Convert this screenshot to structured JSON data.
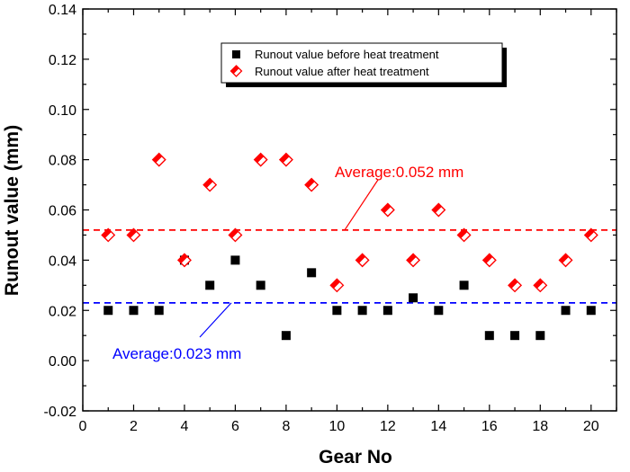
{
  "chart_data": {
    "type": "scatter",
    "xlabel": "Gear No",
    "ylabel": "Runout value (mm)",
    "xlim": [
      0,
      21
    ],
    "ylim": [
      -0.02,
      0.14
    ],
    "xticks": [
      "0",
      "2",
      "4",
      "6",
      "8",
      "10",
      "12",
      "14",
      "16",
      "18",
      "20"
    ],
    "yticks": [
      "-0.02",
      "0.00",
      "0.02",
      "0.04",
      "0.06",
      "0.08",
      "0.10",
      "0.12",
      "0.14"
    ],
    "x": [
      1,
      2,
      3,
      4,
      5,
      6,
      7,
      8,
      9,
      10,
      11,
      12,
      13,
      14,
      15,
      16,
      17,
      18,
      19,
      20
    ],
    "series": [
      {
        "name": "Runout value before heat treatment",
        "marker": "square",
        "color": "#000000",
        "values": [
          0.02,
          0.02,
          0.02,
          0.04,
          0.03,
          0.04,
          0.03,
          0.01,
          0.035,
          0.02,
          0.02,
          0.02,
          0.025,
          0.02,
          0.03,
          0.01,
          0.01,
          0.01,
          0.02,
          0.02
        ]
      },
      {
        "name": "Runout value after heat treatment",
        "marker": "diamond",
        "color": "#ff0000",
        "values": [
          0.05,
          0.05,
          0.08,
          0.04,
          0.07,
          0.05,
          0.08,
          0.08,
          0.07,
          0.03,
          0.04,
          0.06,
          0.04,
          0.06,
          0.05,
          0.04,
          0.03,
          0.03,
          0.04,
          0.05
        ]
      }
    ],
    "reference_lines": [
      {
        "value": 0.052,
        "color": "#ff0000",
        "style": "dashed",
        "label": "Average:0.052 mm"
      },
      {
        "value": 0.023,
        "color": "#0000ff",
        "style": "dashed",
        "label": "Average:0.023 mm"
      }
    ],
    "legend_position": "top-center",
    "grid": false
  }
}
